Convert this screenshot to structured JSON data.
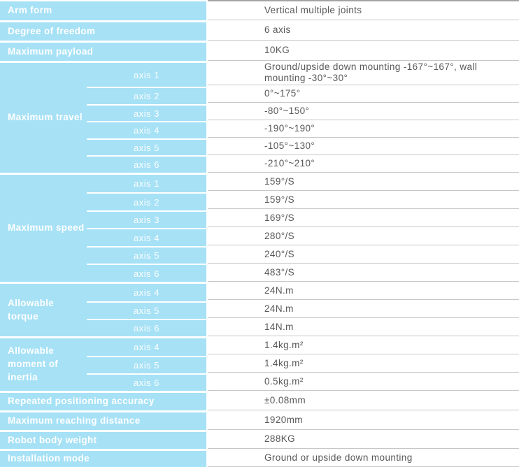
{
  "table": {
    "colors": {
      "blue": "#a6e1f6",
      "label_text": "#ffffff",
      "value_text": "#58585a",
      "hairline": "#c6c7c9",
      "top_hairline": "#a3a4a6"
    },
    "sections": [
      {
        "label": "Arm form",
        "rows": [
          {
            "value": "Vertical multiple joints"
          }
        ]
      },
      {
        "label": "Degree of freedom",
        "rows": [
          {
            "value": "6 axis"
          }
        ]
      },
      {
        "label": "Maximum payload",
        "rows": [
          {
            "value": "10KG"
          }
        ]
      },
      {
        "label": "Maximum travel",
        "rows": [
          {
            "axis": "axis 1",
            "value": "Ground/upside down mounting -167°~167°, wall mounting -30°~30°"
          },
          {
            "axis": "axis 2",
            "value": "0°~175°"
          },
          {
            "axis": "axis 3",
            "value": "-80°~150°"
          },
          {
            "axis": "axis 4",
            "value": "-190°~190°"
          },
          {
            "axis": "axis 5",
            "value": "-105°~130°"
          },
          {
            "axis": "axis 6",
            "value": "-210°~210°"
          }
        ]
      },
      {
        "label": "Maximum speed",
        "rows": [
          {
            "axis": "axis 1",
            "value": "159°/S"
          },
          {
            "axis": "axis 2",
            "value": "159°/S"
          },
          {
            "axis": "axis 3",
            "value": "169°/S"
          },
          {
            "axis": "axis 4",
            "value": "280°/S"
          },
          {
            "axis": "axis 5",
            "value": "240°/S"
          },
          {
            "axis": "axis 6",
            "value": "483°/S"
          }
        ]
      },
      {
        "label": "Allowable torque",
        "rows": [
          {
            "axis": "axis 4",
            "value": "24N.m"
          },
          {
            "axis": "axis 5",
            "value": "24N.m"
          },
          {
            "axis": "axis 6",
            "value": "14N.m"
          }
        ]
      },
      {
        "label": "Allowable moment of inertia",
        "rows": [
          {
            "axis": "axis 4",
            "value": "1.4kg.m²"
          },
          {
            "axis": "axis 5",
            "value": "1.4kg.m²"
          },
          {
            "axis": "axis 6",
            "value": "0.5kg.m²"
          }
        ]
      },
      {
        "label": "Repeated positioning accuracy",
        "rows": [
          {
            "value": "±0.08mm"
          }
        ]
      },
      {
        "label": "Maximum reaching distance",
        "rows": [
          {
            "value": "1920mm"
          }
        ]
      },
      {
        "label": "Robot body weight",
        "rows": [
          {
            "value": "288KG"
          }
        ]
      },
      {
        "label": "Installation mode",
        "rows": [
          {
            "value": "Ground or upside down mounting"
          }
        ]
      }
    ]
  }
}
